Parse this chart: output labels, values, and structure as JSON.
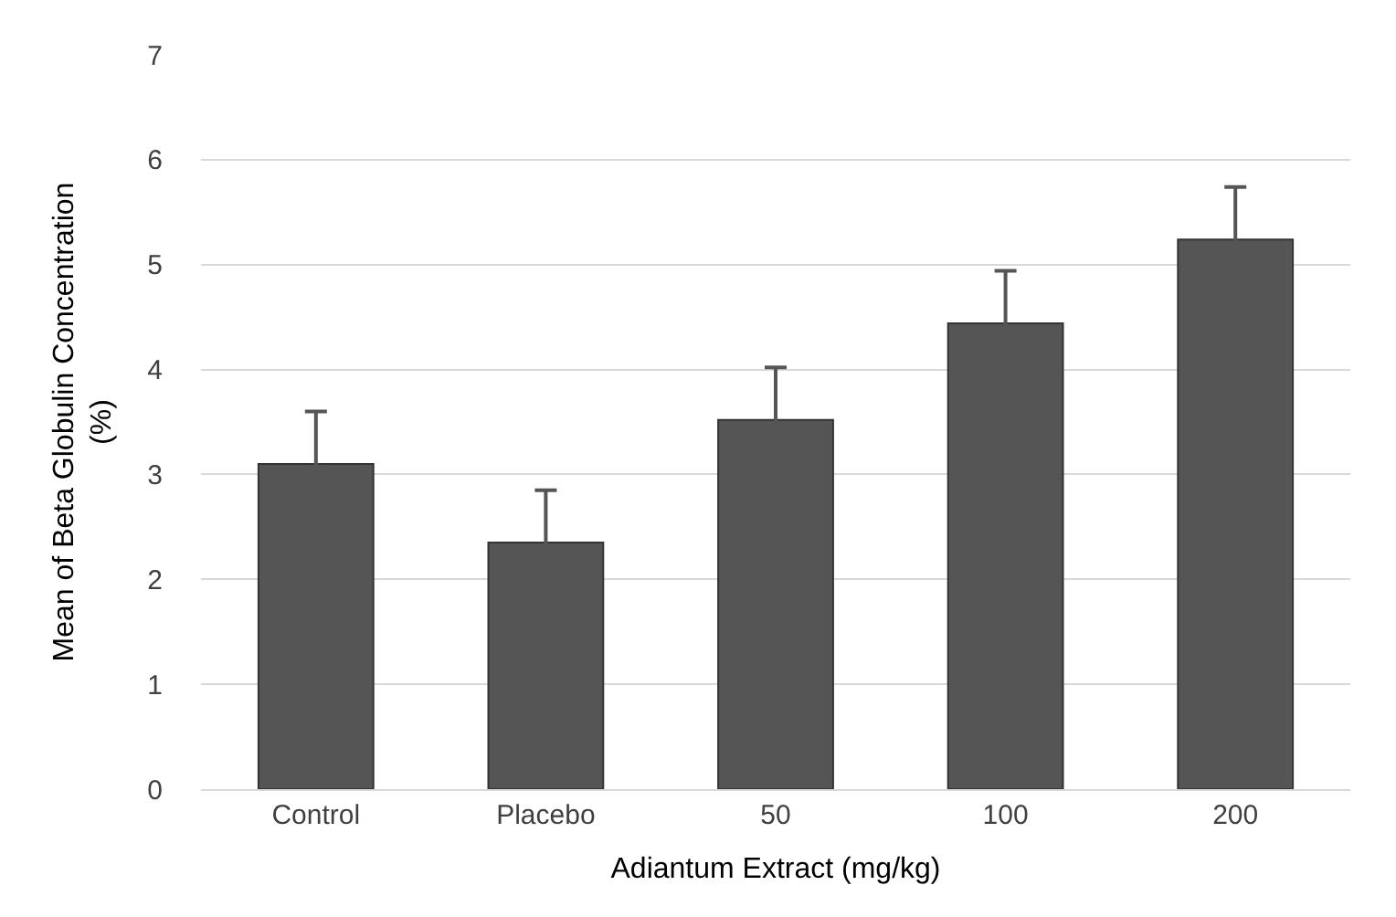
{
  "chart_data": {
    "type": "bar",
    "xlabel": "Adiantum Extract (mg/kg)",
    "ylabel": "Mean of Beta Globulin Concentration\n(%)",
    "categories": [
      "Control",
      "Placebo",
      "50",
      "100",
      "200"
    ],
    "values": [
      3.1,
      2.35,
      3.52,
      4.44,
      5.24
    ],
    "errors": [
      0.5,
      0.5,
      0.5,
      0.5,
      0.5
    ],
    "color": "#555555",
    "ylim": [
      0,
      7
    ],
    "yticks": [
      0,
      1,
      2,
      3,
      4,
      5,
      6,
      7
    ],
    "grid": "y",
    "legend": false
  }
}
